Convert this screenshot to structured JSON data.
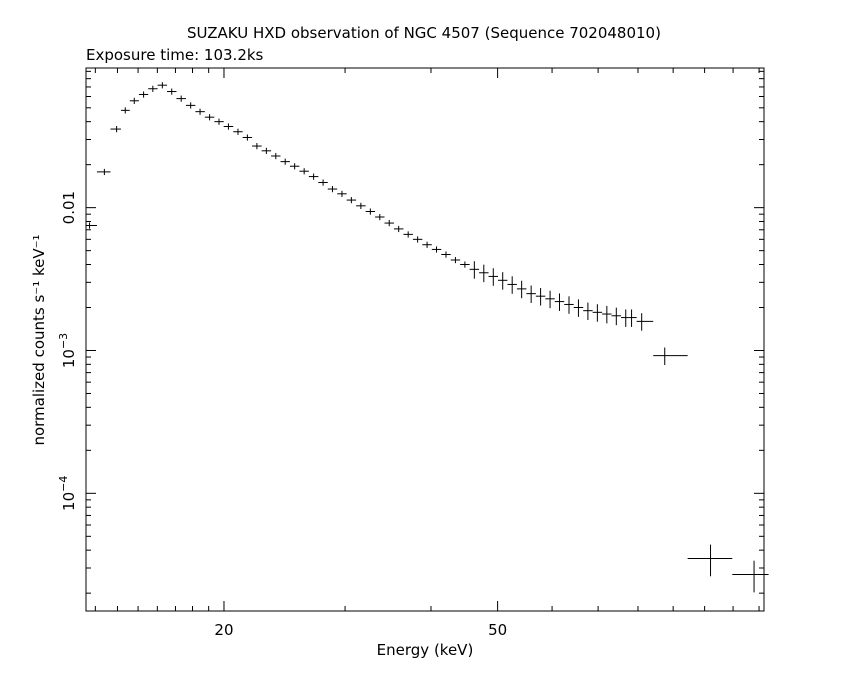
{
  "chart_data": {
    "type": "scatter",
    "title": "SUZAKU HXD observation of NGC 4507 (Sequence 702048010)",
    "subtitle": "Exposure time: 103.2ks",
    "xlabel": "Energy (keV)",
    "ylabel": "normalized counts s⁻¹ keV⁻¹",
    "x_scale": "log",
    "y_scale": "log",
    "xlim": [
      12.6,
      122
    ],
    "ylim": [
      1.5e-05,
      0.095
    ],
    "x_ticks": [
      {
        "value": 20,
        "label": "20"
      },
      {
        "value": 50,
        "label": "50"
      }
    ],
    "y_ticks": [
      {
        "value": 0.01,
        "label": "0.01"
      },
      {
        "value": 0.001,
        "label": "10",
        "exp": "−3"
      },
      {
        "value": 0.0001,
        "label": "10",
        "exp": "−4"
      }
    ],
    "grid": false,
    "series": [
      {
        "marker": "crosshair-errorbar",
        "x": [
          12.75,
          13.4,
          13.96,
          14.37,
          14.81,
          15.28,
          15.76,
          16.27,
          16.79,
          17.33,
          17.89,
          18.46,
          19.06,
          19.67,
          20.3,
          20.96,
          21.63,
          22.33,
          23.05,
          23.79,
          24.55,
          25.34,
          26.16,
          27.0,
          27.87,
          28.76,
          29.69,
          30.64,
          31.63,
          32.65,
          33.7,
          34.78,
          35.9,
          37.06,
          38.25,
          39.48,
          40.75,
          42.06,
          43.41,
          44.81,
          46.25,
          47.74,
          49.28,
          50.86,
          52.5,
          54.19,
          55.94,
          57.74,
          59.6,
          61.51,
          63.5,
          65.54,
          67.65,
          69.83,
          72.08,
          74.4,
          76.79,
          78.3,
          81.0,
          87.5,
          102.0,
          118.0
        ],
        "y": [
          0.0075,
          0.0178,
          0.0355,
          0.048,
          0.056,
          0.062,
          0.068,
          0.072,
          0.065,
          0.058,
          0.052,
          0.047,
          0.043,
          0.04,
          0.037,
          0.034,
          0.031,
          0.027,
          0.025,
          0.023,
          0.021,
          0.0195,
          0.018,
          0.0165,
          0.015,
          0.0135,
          0.0125,
          0.0113,
          0.0103,
          0.0094,
          0.0086,
          0.0078,
          0.0071,
          0.0065,
          0.006,
          0.0055,
          0.0051,
          0.0047,
          0.0043,
          0.004,
          0.0037,
          0.0035,
          0.0033,
          0.0031,
          0.0029,
          0.0027,
          0.0025,
          0.0024,
          0.0023,
          0.0022,
          0.0021,
          0.002,
          0.0019,
          0.00185,
          0.0018,
          0.00175,
          0.0017,
          0.0017,
          0.0016,
          0.00092,
          3.5e-05,
          2.7e-05
        ]
      }
    ]
  }
}
